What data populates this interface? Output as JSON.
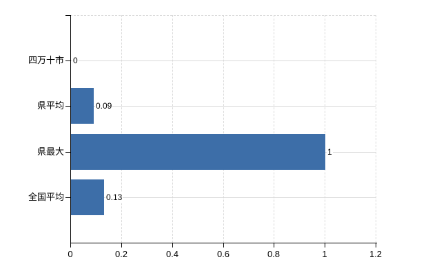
{
  "chart_data": {
    "type": "bar",
    "orientation": "horizontal",
    "title": "",
    "xlabel": "",
    "ylabel": "",
    "categories": [
      "四万十市",
      "県平均",
      "県最大",
      "全国平均"
    ],
    "values": [
      0,
      0.09,
      1,
      0.13
    ],
    "data_labels": [
      "0",
      "0.09",
      "1",
      "0.13"
    ],
    "x_ticks": [
      0,
      0.2,
      0.4,
      0.6,
      0.8,
      1,
      1.2
    ],
    "x_tick_labels": [
      "0",
      "0.2",
      "0.4",
      "0.6",
      "0.8",
      "1",
      "1.2"
    ],
    "xlim": [
      0,
      1.2
    ],
    "grid": true,
    "legend": false,
    "colors": {
      "bar": "#3d6ea8",
      "gridline": "#d9d9d9",
      "axis": "#000000",
      "text": "#000000",
      "background": "#ffffff"
    }
  }
}
